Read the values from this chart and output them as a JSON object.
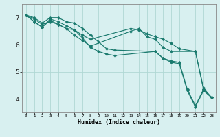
{
  "xlabel": "Humidex (Indice chaleur)",
  "bg_color": "#d8f0f0",
  "grid_color": "#b0d8d4",
  "line_color": "#1a7a6e",
  "xlim": [
    -0.5,
    23.5
  ],
  "ylim": [
    3.5,
    7.5
  ],
  "yticks": [
    4,
    5,
    6,
    7
  ],
  "xtick_labels": [
    "0",
    "1",
    "2",
    "3",
    "4",
    "5",
    "6",
    "7",
    "8",
    "9",
    "10",
    "11",
    "12",
    "13",
    "14",
    "15",
    "16",
    "17",
    "18",
    "19",
    "20",
    "21",
    "22",
    "23"
  ],
  "lines": [
    {
      "x": [
        0,
        1,
        2,
        3,
        4,
        5,
        6,
        7,
        8,
        13,
        14,
        15,
        16,
        17,
        18,
        19,
        21,
        22,
        23
      ],
      "y": [
        7.1,
        6.95,
        6.75,
        6.85,
        6.75,
        6.6,
        6.55,
        6.35,
        6.2,
        6.6,
        6.55,
        6.4,
        6.3,
        6.2,
        6.05,
        5.85,
        5.75,
        4.35,
        4.05
      ]
    },
    {
      "x": [
        0,
        1,
        2,
        3,
        4,
        5,
        6,
        7,
        8,
        13,
        14,
        15,
        16,
        17,
        18,
        21,
        22,
        23
      ],
      "y": [
        7.1,
        6.85,
        6.65,
        6.9,
        6.75,
        6.6,
        6.35,
        6.15,
        5.95,
        6.5,
        6.6,
        6.3,
        6.2,
        5.9,
        5.75,
        5.75,
        4.4,
        4.05
      ]
    },
    {
      "x": [
        0,
        1,
        2,
        3,
        4,
        5,
        6,
        7,
        8,
        9,
        10,
        11,
        16,
        17,
        18,
        19,
        20,
        21,
        22,
        23
      ],
      "y": [
        7.1,
        7.0,
        6.8,
        7.0,
        7.0,
        6.85,
        6.8,
        6.6,
        6.35,
        6.1,
        5.85,
        5.8,
        5.75,
        5.5,
        5.4,
        5.35,
        4.35,
        3.75,
        4.35,
        4.05
      ]
    },
    {
      "x": [
        0,
        1,
        2,
        3,
        4,
        5,
        6,
        7,
        8,
        9,
        10,
        11,
        16,
        17,
        18,
        19,
        20,
        21,
        22,
        23
      ],
      "y": [
        7.1,
        6.85,
        6.65,
        6.95,
        6.85,
        6.7,
        6.55,
        6.25,
        5.9,
        5.75,
        5.65,
        5.6,
        5.75,
        5.5,
        5.35,
        5.3,
        4.3,
        3.7,
        4.3,
        4.05
      ]
    }
  ]
}
